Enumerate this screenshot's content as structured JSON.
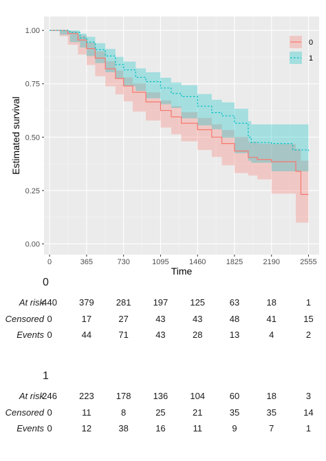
{
  "chart_data": {
    "type": "line",
    "xlabel": "Time",
    "ylabel": "Estimated survival",
    "xlim": [
      -55,
      2660
    ],
    "ylim": [
      -0.05,
      1.065
    ],
    "x_ticks": [
      0,
      365,
      730,
      1095,
      1460,
      1825,
      2190,
      2555
    ],
    "y_ticks": [
      0,
      0.25,
      0.5,
      0.75,
      1
    ],
    "y_tick_labels": [
      "0.00",
      "0.25",
      "0.50",
      "0.75",
      "1.00"
    ],
    "grid": true,
    "legend_position": "top-right",
    "series": [
      {
        "name": "0",
        "color": "#F8766D",
        "dash": "solid",
        "points": [
          [
            0,
            1.0
          ],
          [
            100,
            1.0
          ],
          [
            180,
            0.985
          ],
          [
            280,
            0.955
          ],
          [
            365,
            0.915
          ],
          [
            450,
            0.87
          ],
          [
            550,
            0.82
          ],
          [
            650,
            0.775
          ],
          [
            730,
            0.74
          ],
          [
            820,
            0.71
          ],
          [
            950,
            0.665
          ],
          [
            1095,
            0.625
          ],
          [
            1200,
            0.595
          ],
          [
            1300,
            0.565
          ],
          [
            1460,
            0.535
          ],
          [
            1600,
            0.5
          ],
          [
            1700,
            0.47
          ],
          [
            1825,
            0.435
          ],
          [
            1960,
            0.405
          ],
          [
            2050,
            0.395
          ],
          [
            2190,
            0.385
          ],
          [
            2430,
            0.34
          ],
          [
            2480,
            0.232
          ],
          [
            2555,
            0.232
          ]
        ],
        "upper": [
          [
            0,
            1.0
          ],
          [
            100,
            1.0
          ],
          [
            180,
            0.997
          ],
          [
            280,
            0.977
          ],
          [
            365,
            0.943
          ],
          [
            450,
            0.902
          ],
          [
            550,
            0.855
          ],
          [
            650,
            0.812
          ],
          [
            730,
            0.78
          ],
          [
            820,
            0.752
          ],
          [
            950,
            0.71
          ],
          [
            1095,
            0.672
          ],
          [
            1200,
            0.645
          ],
          [
            1300,
            0.617
          ],
          [
            1460,
            0.59
          ],
          [
            1600,
            0.56
          ],
          [
            1700,
            0.533
          ],
          [
            1825,
            0.502
          ],
          [
            1960,
            0.478
          ],
          [
            2050,
            0.47
          ],
          [
            2190,
            0.468
          ],
          [
            2430,
            0.445
          ],
          [
            2480,
            0.39
          ],
          [
            2555,
            0.39
          ]
        ],
        "lower": [
          [
            0,
            1.0
          ],
          [
            100,
            1.0
          ],
          [
            180,
            0.973
          ],
          [
            280,
            0.933
          ],
          [
            365,
            0.887
          ],
          [
            450,
            0.838
          ],
          [
            550,
            0.785
          ],
          [
            650,
            0.738
          ],
          [
            730,
            0.7
          ],
          [
            820,
            0.668
          ],
          [
            950,
            0.62
          ],
          [
            1095,
            0.578
          ],
          [
            1200,
            0.545
          ],
          [
            1300,
            0.513
          ],
          [
            1460,
            0.48
          ],
          [
            1600,
            0.44
          ],
          [
            1700,
            0.407
          ],
          [
            1825,
            0.368
          ],
          [
            1960,
            0.332
          ],
          [
            2050,
            0.32
          ],
          [
            2190,
            0.302
          ],
          [
            2430,
            0.235
          ],
          [
            2480,
            0.1
          ],
          [
            2555,
            0.1
          ]
        ]
      },
      {
        "name": "1",
        "color": "#00BFC4",
        "dash": "dotted",
        "points": [
          [
            0,
            1.0
          ],
          [
            100,
            1.0
          ],
          [
            200,
            0.99
          ],
          [
            300,
            0.965
          ],
          [
            365,
            0.945
          ],
          [
            450,
            0.91
          ],
          [
            550,
            0.88
          ],
          [
            650,
            0.84
          ],
          [
            730,
            0.815
          ],
          [
            850,
            0.78
          ],
          [
            950,
            0.76
          ],
          [
            1095,
            0.73
          ],
          [
            1200,
            0.705
          ],
          [
            1300,
            0.69
          ],
          [
            1460,
            0.645
          ],
          [
            1600,
            0.615
          ],
          [
            1700,
            0.6
          ],
          [
            1825,
            0.565
          ],
          [
            1960,
            0.5
          ],
          [
            1990,
            0.475
          ],
          [
            2190,
            0.47
          ],
          [
            2400,
            0.44
          ],
          [
            2555,
            0.435
          ]
        ],
        "upper": [
          [
            0,
            1.0
          ],
          [
            100,
            1.0
          ],
          [
            200,
            1.0
          ],
          [
            300,
            0.985
          ],
          [
            365,
            0.97
          ],
          [
            450,
            0.94
          ],
          [
            550,
            0.913
          ],
          [
            650,
            0.876
          ],
          [
            730,
            0.854
          ],
          [
            850,
            0.822
          ],
          [
            950,
            0.804
          ],
          [
            1095,
            0.778
          ],
          [
            1200,
            0.756
          ],
          [
            1300,
            0.743
          ],
          [
            1460,
            0.702
          ],
          [
            1600,
            0.675
          ],
          [
            1700,
            0.663
          ],
          [
            1825,
            0.633
          ],
          [
            1960,
            0.575
          ],
          [
            1990,
            0.56
          ],
          [
            2190,
            0.56
          ],
          [
            2400,
            0.56
          ],
          [
            2555,
            0.56
          ]
        ],
        "lower": [
          [
            0,
            1.0
          ],
          [
            100,
            1.0
          ],
          [
            200,
            0.98
          ],
          [
            300,
            0.945
          ],
          [
            365,
            0.92
          ],
          [
            450,
            0.88
          ],
          [
            550,
            0.847
          ],
          [
            650,
            0.804
          ],
          [
            730,
            0.776
          ],
          [
            850,
            0.738
          ],
          [
            950,
            0.716
          ],
          [
            1095,
            0.682
          ],
          [
            1200,
            0.654
          ],
          [
            1300,
            0.637
          ],
          [
            1460,
            0.588
          ],
          [
            1600,
            0.555
          ],
          [
            1700,
            0.537
          ],
          [
            1825,
            0.497
          ],
          [
            1960,
            0.425
          ],
          [
            1990,
            0.39
          ],
          [
            2190,
            0.38
          ],
          [
            2400,
            0.34
          ],
          [
            2555,
            0.34
          ]
        ]
      }
    ]
  },
  "risk_table": {
    "x": [
      0,
      365,
      730,
      1095,
      1460,
      1825,
      2190,
      2555
    ],
    "groups": [
      {
        "title": "0",
        "rows": [
          {
            "label": "At risk",
            "values": [
              "440",
              "379",
              "281",
              "197",
              "125",
              "63",
              "18",
              "1"
            ]
          },
          {
            "label": "Censored",
            "values": [
              "0",
              "17",
              "27",
              "43",
              "43",
              "48",
              "41",
              "15"
            ]
          },
          {
            "label": "Events",
            "values": [
              "0",
              "44",
              "71",
              "43",
              "28",
              "13",
              "4",
              "2"
            ]
          }
        ]
      },
      {
        "title": "1",
        "rows": [
          {
            "label": "At risk",
            "values": [
              "246",
              "223",
              "178",
              "136",
              "104",
              "60",
              "18",
              "3"
            ]
          },
          {
            "label": "Censored",
            "values": [
              "0",
              "11",
              "8",
              "25",
              "21",
              "35",
              "35",
              "14"
            ]
          },
          {
            "label": "Events",
            "values": [
              "0",
              "12",
              "38",
              "16",
              "11",
              "9",
              "7",
              "1"
            ]
          }
        ]
      }
    ]
  }
}
